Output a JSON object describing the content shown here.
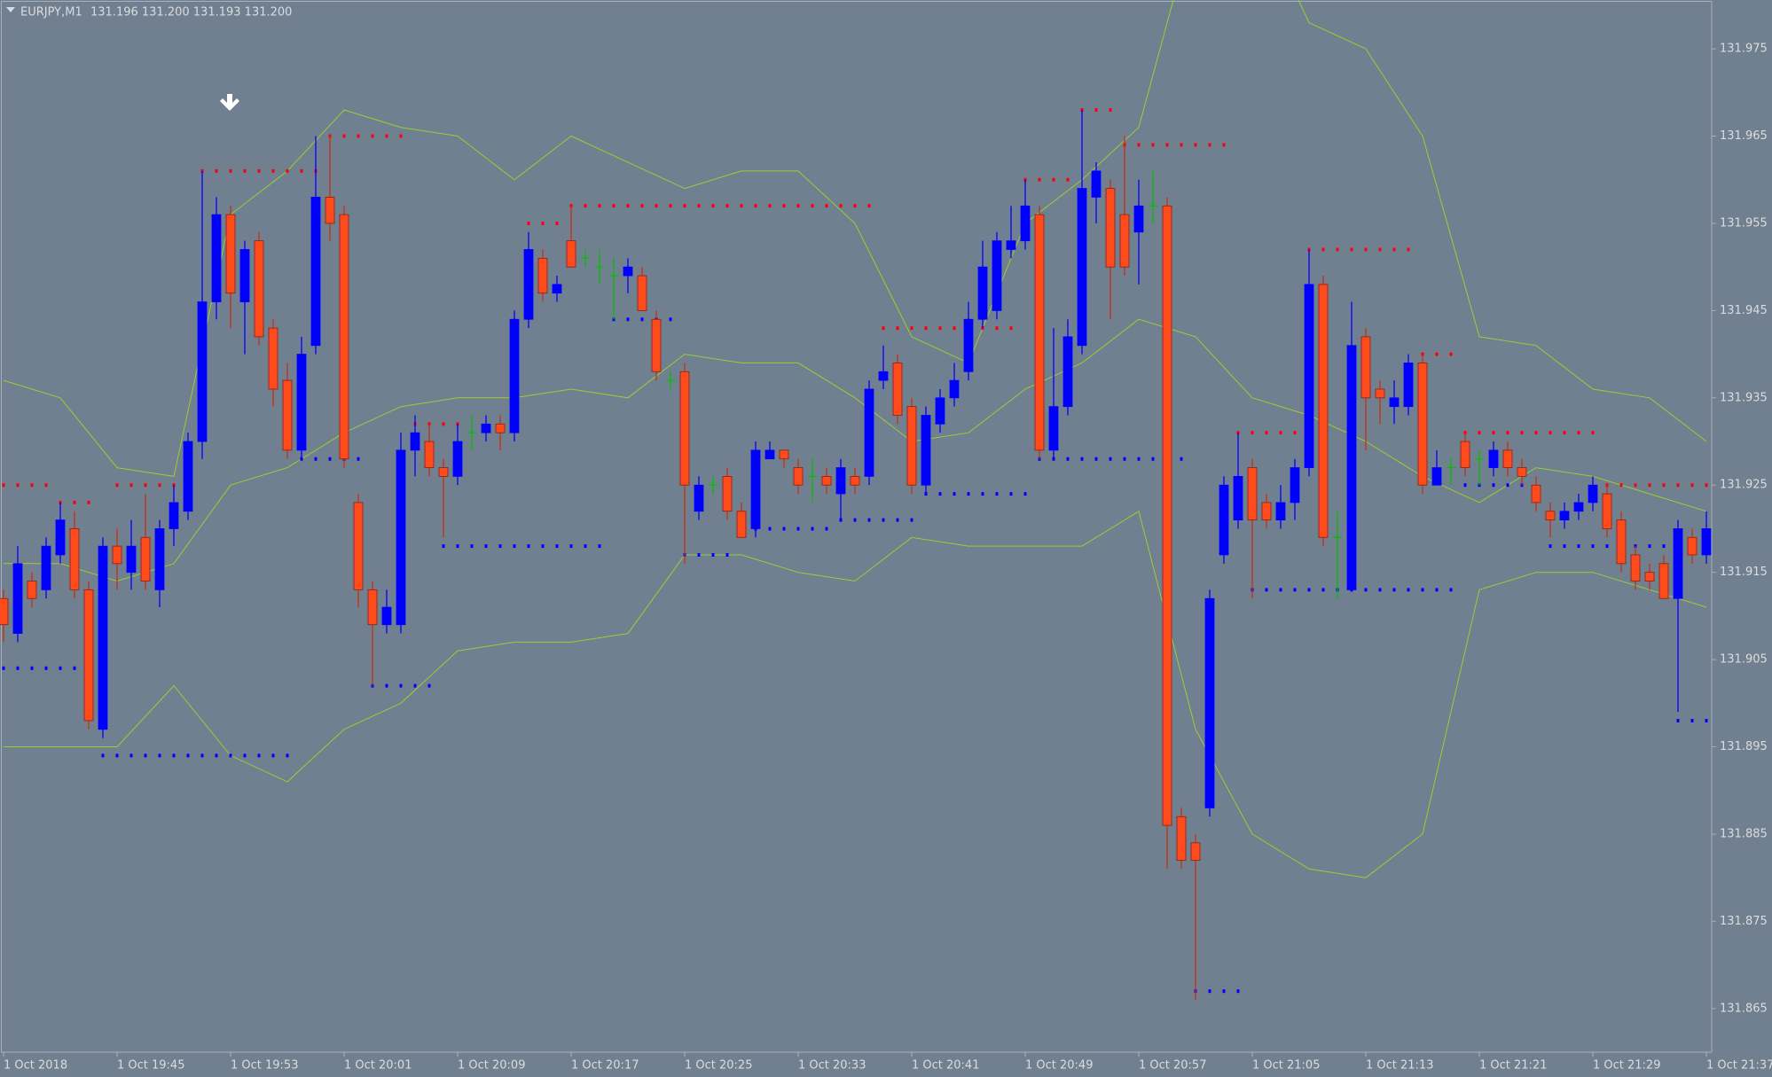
{
  "chart_data": {
    "type": "candlestick",
    "title": "EURJPY,M1",
    "subtitle": "131.196 131.200 131.193 131.200",
    "categories": [
      "1 Oct 2018",
      null,
      null,
      null,
      null,
      null,
      null,
      null,
      "1 Oct 19:45",
      null,
      null,
      null,
      null,
      null,
      null,
      null,
      "1 Oct 19:53",
      null,
      null,
      null,
      null,
      null,
      null,
      null,
      "1 Oct 20:01",
      null,
      null,
      null,
      null,
      null,
      null,
      null,
      "1 Oct 20:09",
      null,
      null,
      null,
      null,
      null,
      null,
      null,
      "1 Oct 20:17",
      null,
      null,
      null,
      null,
      null,
      null,
      null,
      "1 Oct 20:25",
      null,
      null,
      null,
      null,
      null,
      null,
      null,
      "1 Oct 20:33",
      null,
      null,
      null,
      null,
      null,
      null,
      null,
      "1 Oct 20:41",
      null,
      null,
      null,
      null,
      null,
      null,
      null,
      "1 Oct 20:49",
      null,
      null,
      null,
      null,
      null,
      null,
      null,
      "1 Oct 20:57",
      null,
      null,
      null,
      null,
      null,
      null,
      null,
      "1 Oct 21:05",
      null,
      null,
      null,
      null,
      null,
      null,
      null,
      "1 Oct 21:13",
      null,
      null,
      null,
      null,
      null,
      null,
      null,
      "1 Oct 21:21",
      null,
      null,
      null,
      null,
      null,
      null,
      null,
      "1 Oct 21:29",
      null,
      null,
      null,
      null,
      null,
      null,
      null,
      "1 Oct 21:37"
    ],
    "open": [
      131.912,
      131.908,
      131.914,
      131.913,
      131.917,
      131.92,
      131.913,
      131.897,
      131.918,
      131.915,
      131.919,
      131.913,
      131.92,
      131.922,
      131.93,
      131.946,
      131.956,
      131.946,
      131.953,
      131.943,
      131.937,
      131.929,
      131.941,
      131.958,
      131.956,
      131.923,
      131.913,
      131.909,
      131.909,
      131.929,
      131.93,
      131.927,
      131.926,
      131.931,
      131.931,
      131.932,
      131.931,
      131.944,
      131.951,
      131.947,
      131.953,
      131.951,
      131.95,
      131.949,
      131.949,
      131.949,
      131.944,
      131.937,
      131.938,
      131.922,
      131.925,
      131.926,
      131.922,
      131.92,
      131.928,
      131.929,
      131.927,
      131.926,
      131.926,
      131.924,
      131.926,
      131.926,
      131.937,
      131.939,
      131.934,
      131.925,
      131.932,
      131.935,
      131.938,
      131.944,
      131.945,
      131.952,
      131.953,
      131.956,
      131.929,
      131.934,
      131.941,
      131.958,
      131.959,
      131.956,
      131.954,
      131.957,
      131.957,
      131.887,
      131.884,
      131.888,
      131.917,
      131.921,
      131.927,
      131.923,
      131.921,
      131.923,
      131.927,
      131.948,
      131.919,
      131.913,
      131.942,
      131.936,
      131.934,
      131.934,
      131.939,
      131.925,
      131.927,
      131.93,
      131.928,
      131.927,
      131.929,
      131.927,
      131.925,
      131.922,
      131.921,
      131.922,
      131.923,
      131.924,
      131.921,
      131.917,
      131.915,
      131.916,
      131.912,
      131.919,
      131.917
    ],
    "high": [
      131.913,
      131.918,
      131.915,
      131.919,
      131.923,
      131.922,
      131.914,
      131.919,
      131.92,
      131.921,
      131.924,
      131.921,
      131.925,
      131.931,
      131.961,
      131.958,
      131.957,
      131.953,
      131.954,
      131.944,
      131.939,
      131.942,
      131.965,
      131.965,
      131.957,
      131.924,
      131.914,
      131.913,
      131.931,
      131.933,
      131.932,
      131.928,
      131.932,
      131.933,
      131.933,
      131.933,
      131.945,
      131.954,
      131.952,
      131.949,
      131.957,
      131.952,
      131.952,
      131.951,
      131.951,
      131.95,
      131.945,
      131.938,
      131.939,
      131.926,
      131.926,
      131.927,
      131.923,
      131.93,
      131.93,
      131.929,
      131.928,
      131.928,
      131.927,
      131.928,
      131.927,
      131.937,
      131.941,
      131.94,
      131.935,
      131.934,
      131.936,
      131.939,
      131.946,
      131.953,
      131.954,
      131.957,
      131.96,
      131.957,
      131.943,
      131.944,
      131.968,
      131.962,
      131.96,
      131.965,
      131.96,
      131.961,
      131.958,
      131.888,
      131.885,
      131.913,
      131.926,
      131.931,
      131.928,
      131.924,
      131.925,
      131.928,
      131.952,
      131.949,
      131.922,
      131.946,
      131.943,
      131.937,
      131.937,
      131.94,
      131.94,
      131.929,
      131.928,
      131.931,
      131.929,
      131.93,
      131.93,
      131.928,
      131.926,
      131.923,
      131.923,
      131.924,
      131.926,
      131.925,
      131.922,
      131.918,
      131.916,
      131.917,
      131.921,
      131.92,
      131.922
    ],
    "low": [
      131.907,
      131.907,
      131.911,
      131.912,
      131.916,
      131.912,
      131.897,
      131.896,
      131.913,
      131.913,
      131.913,
      131.911,
      131.918,
      131.921,
      131.928,
      131.944,
      131.943,
      131.94,
      131.941,
      131.934,
      131.928,
      131.928,
      131.94,
      131.953,
      131.927,
      131.911,
      131.902,
      131.908,
      131.908,
      131.926,
      131.926,
      131.919,
      131.925,
      131.929,
      131.93,
      131.929,
      131.93,
      131.943,
      131.946,
      131.946,
      131.95,
      131.95,
      131.948,
      131.944,
      131.947,
      131.945,
      131.937,
      131.936,
      131.916,
      131.921,
      131.924,
      131.921,
      131.919,
      131.919,
      131.928,
      131.927,
      131.924,
      131.923,
      131.924,
      131.921,
      131.924,
      131.925,
      131.936,
      131.932,
      131.924,
      131.924,
      131.931,
      131.934,
      131.937,
      131.943,
      131.944,
      131.951,
      131.952,
      131.928,
      131.928,
      131.933,
      131.94,
      131.955,
      131.944,
      131.949,
      131.948,
      131.955,
      131.881,
      131.881,
      131.866,
      131.887,
      131.916,
      131.92,
      131.912,
      131.92,
      131.92,
      131.921,
      131.926,
      131.918,
      131.912,
      131.913,
      131.929,
      131.932,
      131.932,
      131.933,
      131.924,
      131.925,
      131.925,
      131.926,
      131.925,
      131.926,
      131.926,
      131.925,
      131.922,
      131.919,
      131.92,
      131.921,
      131.922,
      131.919,
      131.915,
      131.913,
      131.913,
      131.912,
      131.899,
      131.916,
      131.916
    ],
    "close": [
      131.909,
      131.916,
      131.912,
      131.918,
      131.921,
      131.913,
      131.898,
      131.918,
      131.916,
      131.918,
      131.914,
      131.92,
      131.923,
      131.93,
      131.946,
      131.956,
      131.947,
      131.952,
      131.942,
      131.936,
      131.929,
      131.94,
      131.958,
      131.955,
      131.928,
      131.913,
      131.909,
      131.911,
      131.929,
      131.931,
      131.927,
      131.926,
      131.93,
      131.931,
      131.932,
      131.931,
      131.944,
      131.952,
      131.947,
      131.948,
      131.95,
      131.951,
      131.95,
      131.949,
      131.95,
      131.945,
      131.938,
      131.937,
      131.925,
      131.925,
      131.925,
      131.922,
      131.919,
      131.929,
      131.929,
      131.928,
      131.925,
      131.926,
      131.925,
      131.927,
      131.925,
      131.936,
      131.938,
      131.933,
      131.925,
      131.933,
      131.935,
      131.937,
      131.944,
      131.95,
      131.953,
      131.953,
      131.957,
      131.929,
      131.934,
      131.942,
      131.959,
      131.961,
      131.95,
      131.95,
      131.957,
      131.957,
      131.886,
      131.882,
      131.882,
      131.912,
      131.925,
      131.926,
      131.921,
      131.921,
      131.923,
      131.927,
      131.948,
      131.919,
      131.919,
      131.941,
      131.935,
      131.935,
      131.935,
      131.939,
      131.925,
      131.927,
      131.927,
      131.927,
      131.928,
      131.929,
      131.927,
      131.926,
      131.923,
      131.921,
      131.922,
      131.923,
      131.925,
      131.92,
      131.916,
      131.914,
      131.914,
      131.912,
      131.92,
      131.917,
      131.92
    ],
    "up_color": "#0000ff",
    "down_color": "#ff4a1c",
    "doji_color": "#00c000",
    "bands": {
      "x": [
        0,
        4,
        8,
        12,
        16,
        20,
        24,
        28,
        32,
        36,
        40,
        44,
        48,
        52,
        56,
        60,
        64,
        68,
        72,
        76,
        80,
        84,
        88,
        92,
        96,
        100,
        104,
        108,
        112,
        116,
        120
      ],
      "series": [
        {
          "color": "#9acd32",
          "values": [
            131.937,
            131.935,
            131.927,
            131.926,
            131.956,
            131.961,
            131.968,
            131.966,
            131.965,
            131.96,
            131.965,
            131.962,
            131.959,
            131.961,
            131.961,
            131.955,
            131.942,
            131.939,
            131.955,
            131.96,
            131.966,
            131.99,
            131.992,
            131.978,
            131.975,
            131.965,
            131.942,
            131.941,
            131.936,
            131.935,
            131.93
          ]
        },
        {
          "color": "#9acd32",
          "values": [
            131.916,
            131.916,
            131.914,
            131.916,
            131.925,
            131.927,
            131.931,
            131.934,
            131.935,
            131.935,
            131.936,
            131.935,
            131.94,
            131.939,
            131.939,
            131.935,
            131.93,
            131.931,
            131.936,
            131.939,
            131.944,
            131.942,
            131.935,
            131.933,
            131.93,
            131.926,
            131.923,
            131.927,
            131.926,
            131.924,
            131.922
          ]
        },
        {
          "color": "#9acd32",
          "values": [
            131.895,
            131.895,
            131.895,
            131.902,
            131.894,
            131.891,
            131.897,
            131.9,
            131.906,
            131.907,
            131.907,
            131.908,
            131.917,
            131.917,
            131.915,
            131.914,
            131.919,
            131.918,
            131.918,
            131.918,
            131.922,
            131.897,
            131.885,
            131.881,
            131.88,
            131.885,
            131.913,
            131.915,
            131.915,
            131.913,
            131.911
          ]
        }
      ]
    },
    "resistance": {
      "color": "#ff0000",
      "levels": [
        {
          "from": 0,
          "to": 3,
          "value": 131.925
        },
        {
          "from": 4,
          "to": 6,
          "value": 131.923
        },
        {
          "from": 8,
          "to": 12,
          "value": 131.925
        },
        {
          "from": 14,
          "to": 22,
          "value": 131.961
        },
        {
          "from": 23,
          "to": 28,
          "value": 131.965
        },
        {
          "from": 29,
          "to": 32,
          "value": 131.932
        },
        {
          "from": 37,
          "to": 39,
          "value": 131.955
        },
        {
          "from": 40,
          "to": 61,
          "value": 131.957
        },
        {
          "from": 62,
          "to": 71,
          "value": 131.943
        },
        {
          "from": 72,
          "to": 75,
          "value": 131.96
        },
        {
          "from": 76,
          "to": 78,
          "value": 131.968
        },
        {
          "from": 79,
          "to": 86,
          "value": 131.964
        },
        {
          "from": 87,
          "to": 91,
          "value": 131.931
        },
        {
          "from": 92,
          "to": 99,
          "value": 131.952
        },
        {
          "from": 100,
          "to": 102,
          "value": 131.94
        },
        {
          "from": 103,
          "to": 112,
          "value": 131.931
        },
        {
          "from": 113,
          "to": 120,
          "value": 131.925
        }
      ]
    },
    "support": {
      "color": "#0000ff",
      "levels": [
        {
          "from": 0,
          "to": 5,
          "value": 131.904
        },
        {
          "from": 7,
          "to": 20,
          "value": 131.894
        },
        {
          "from": 21,
          "to": 25,
          "value": 131.928
        },
        {
          "from": 26,
          "to": 30,
          "value": 131.902
        },
        {
          "from": 31,
          "to": 42,
          "value": 131.918
        },
        {
          "from": 43,
          "to": 47,
          "value": 131.944
        },
        {
          "from": 48,
          "to": 51,
          "value": 131.917
        },
        {
          "from": 52,
          "to": 58,
          "value": 131.92
        },
        {
          "from": 59,
          "to": 64,
          "value": 131.921
        },
        {
          "from": 65,
          "to": 72,
          "value": 131.924
        },
        {
          "from": 73,
          "to": 83,
          "value": 131.928
        },
        {
          "from": 84,
          "to": 87,
          "value": 131.867
        },
        {
          "from": 88,
          "to": 102,
          "value": 131.913
        },
        {
          "from": 103,
          "to": 107,
          "value": 131.925
        },
        {
          "from": 109,
          "to": 118,
          "value": 131.918
        },
        {
          "from": 118,
          "to": 120,
          "value": 131.898
        }
      ]
    },
    "ylim": [
      131.86,
      131.9806
    ],
    "yticks": [
      131.975,
      131.965,
      131.955,
      131.945,
      131.935,
      131.925,
      131.915,
      131.905,
      131.895,
      131.885,
      131.875,
      131.865
    ]
  }
}
